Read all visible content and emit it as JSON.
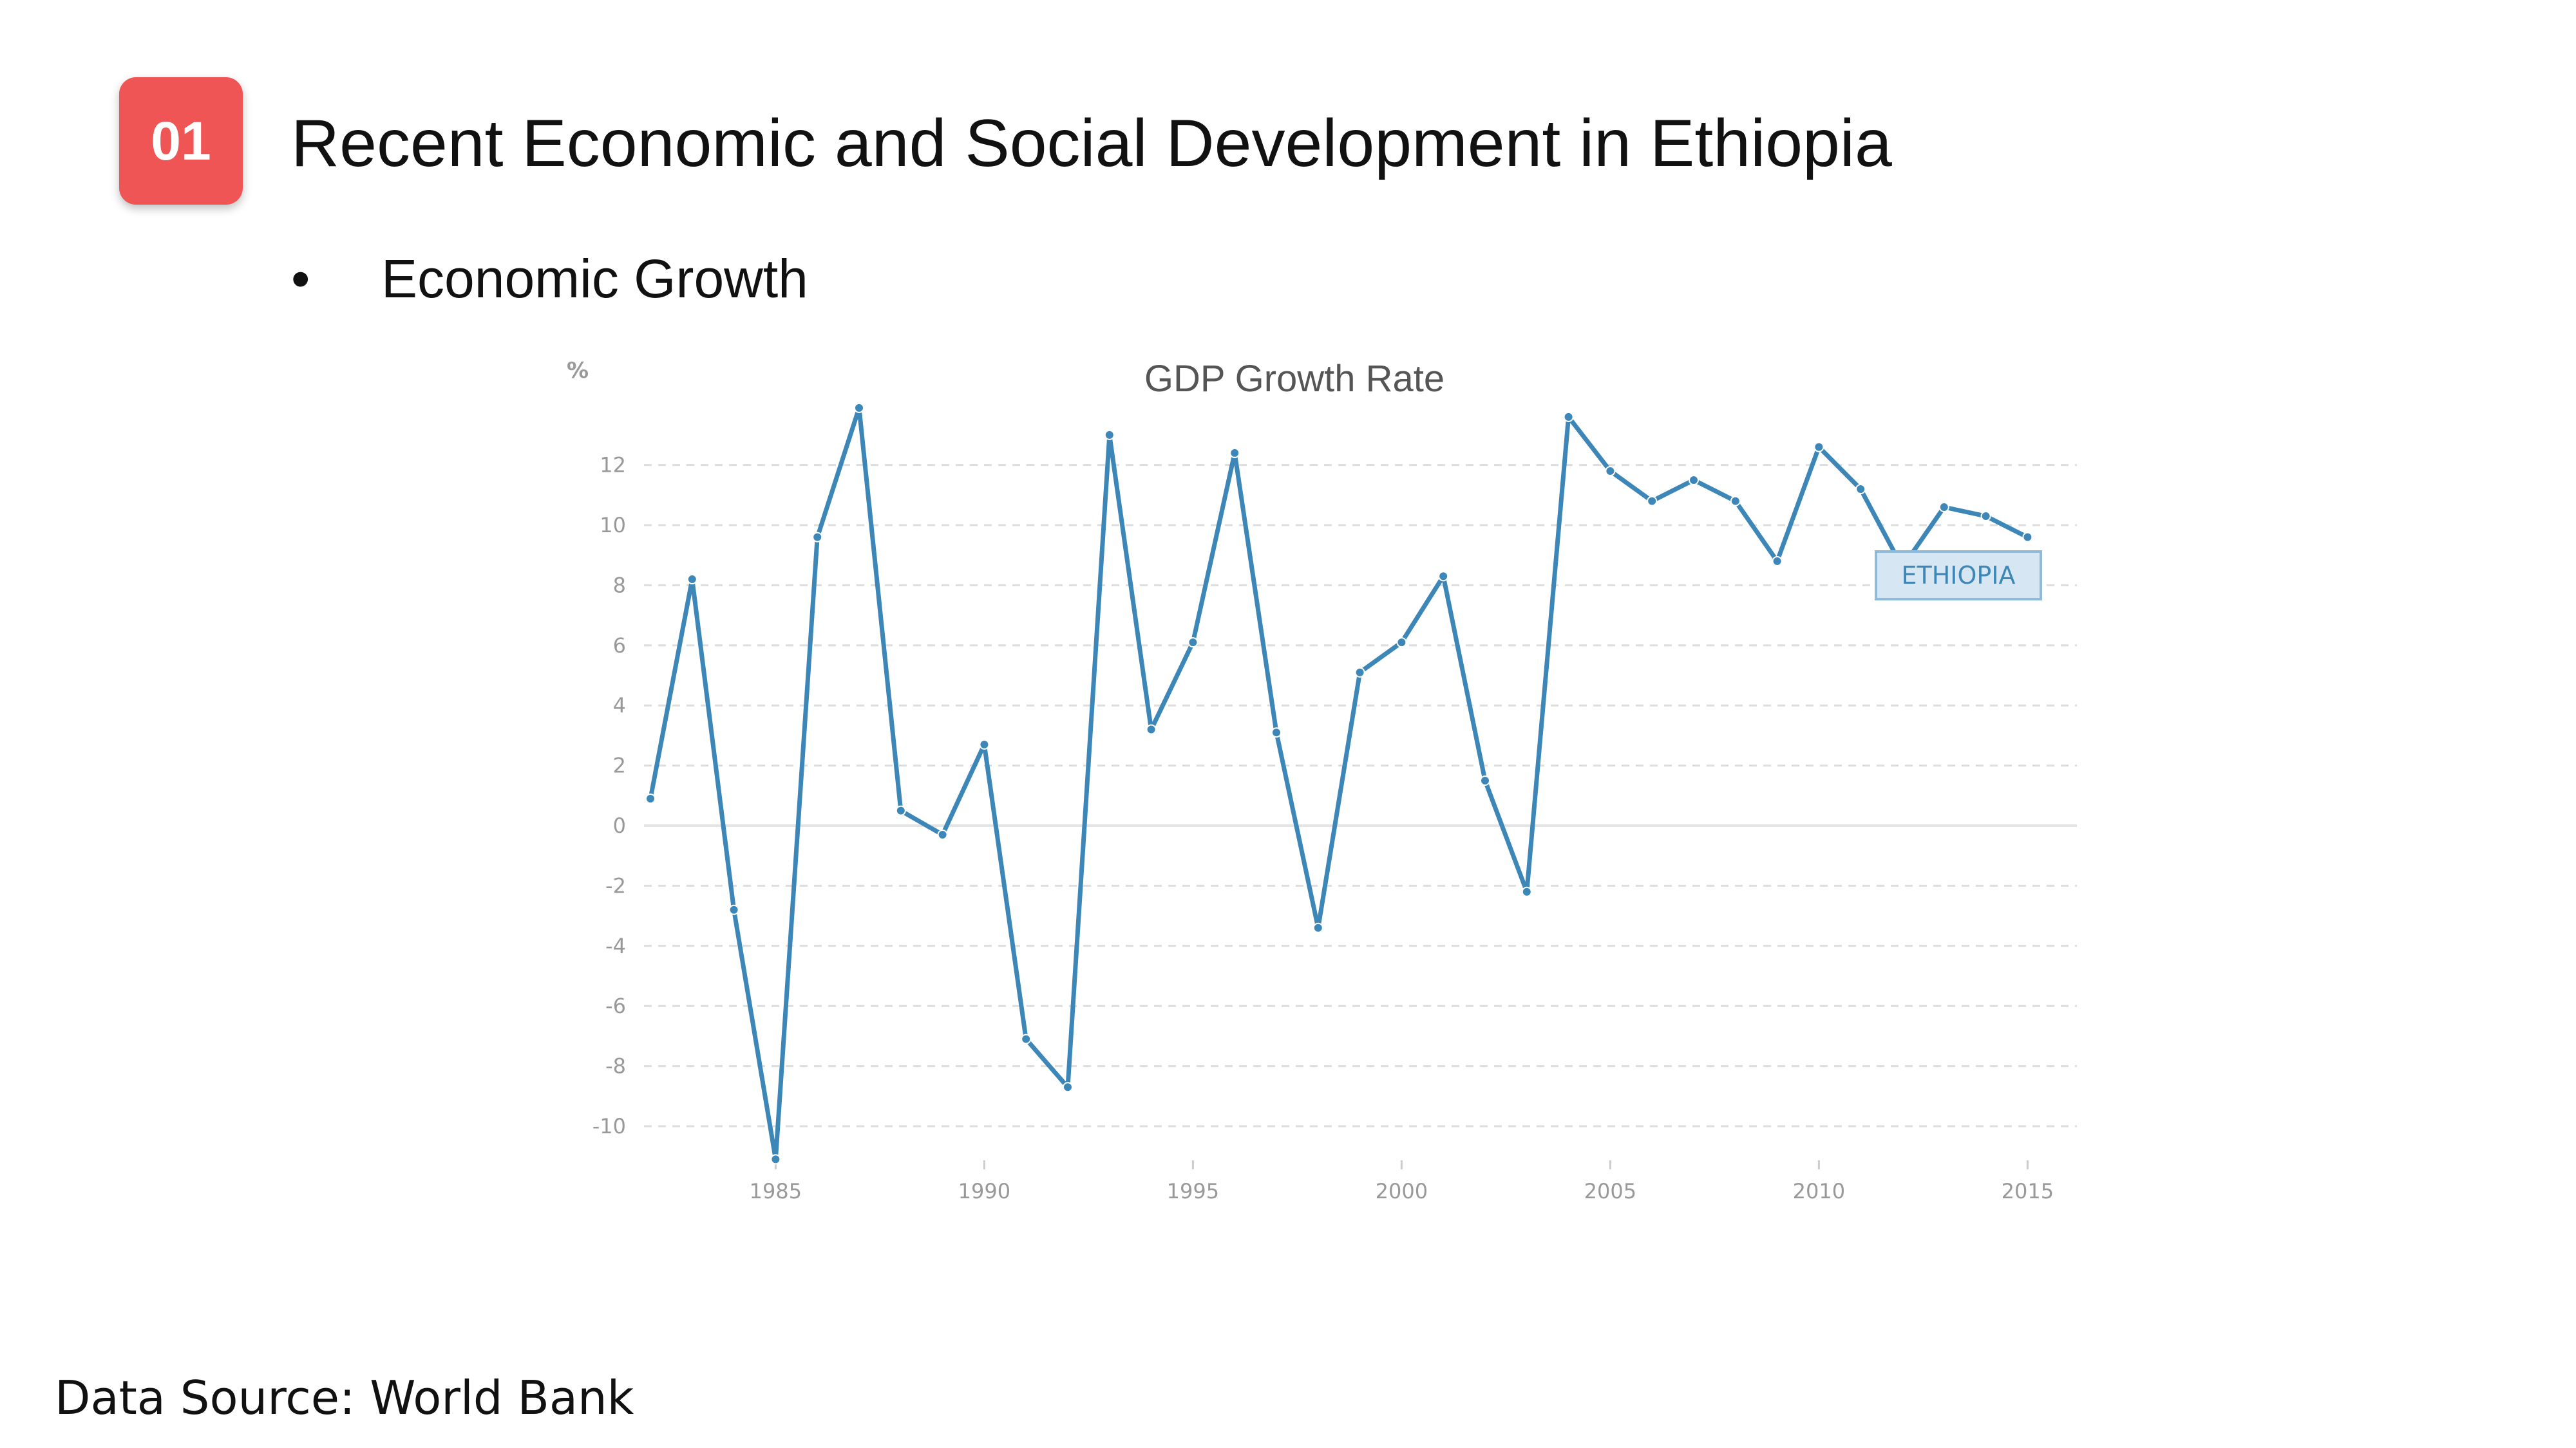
{
  "slide": {
    "badge": "01",
    "title": "Recent Economic and Social Development in Ethiopia",
    "bullet_symbol": "•",
    "bullet": "Economic Growth",
    "source": "Data Source: World Bank"
  },
  "colors": {
    "badge": "#ef5555",
    "line": "#3d86b8",
    "grid": "#dddddd",
    "legend_fill": "#d6e7f3",
    "legend_border": "#8fbbd9"
  },
  "chart_data": {
    "type": "line",
    "title": "GDP Growth Rate",
    "ylabel": "%",
    "ylim": [
      -11,
      14
    ],
    "yticks": [
      12,
      10,
      8,
      6,
      4,
      2,
      0,
      -2,
      -4,
      -6,
      -8,
      -10
    ],
    "xlim": [
      1982,
      2016
    ],
    "xticks": [
      1985,
      1990,
      1995,
      2000,
      2005,
      2010,
      2015
    ],
    "grid": true,
    "series": [
      {
        "name": "ETHIOPIA",
        "x": [
          1982,
          1983,
          1984,
          1985,
          1986,
          1987,
          1988,
          1989,
          1990,
          1991,
          1992,
          1993,
          1994,
          1995,
          1996,
          1997,
          1998,
          1999,
          2000,
          2001,
          2002,
          2003,
          2004,
          2005,
          2006,
          2007,
          2008,
          2009,
          2010,
          2011,
          2012,
          2013,
          2014,
          2015
        ],
        "values": [
          0.9,
          8.2,
          -2.8,
          -11.1,
          9.6,
          13.9,
          0.5,
          -0.3,
          2.7,
          -7.1,
          -8.7,
          13.0,
          3.2,
          6.1,
          12.4,
          3.1,
          -3.4,
          5.1,
          6.1,
          8.3,
          1.5,
          -2.2,
          13.6,
          11.8,
          10.8,
          11.5,
          10.8,
          8.8,
          12.6,
          11.2,
          8.6,
          10.6,
          10.3,
          9.6
        ]
      }
    ],
    "legend": "ETHIOPIA"
  }
}
